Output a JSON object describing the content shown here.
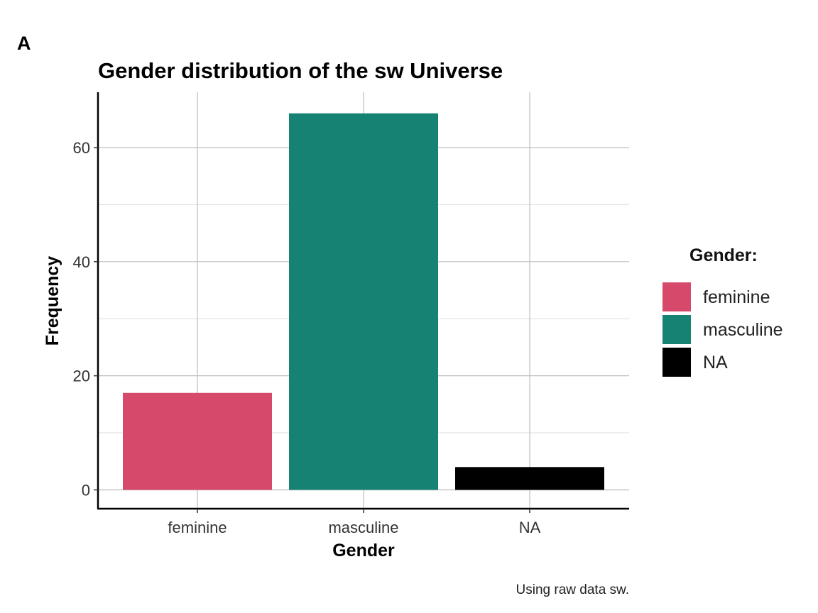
{
  "panel_tag": "A",
  "chart_data": {
    "type": "bar",
    "title": "Gender distribution of the sw Universe",
    "xlabel": "Gender",
    "ylabel": "Frequency",
    "caption": "Using raw data sw.",
    "categories": [
      "feminine",
      "masculine",
      "NA"
    ],
    "values": [
      17,
      66,
      4
    ],
    "colors": [
      "#D6496B",
      "#158274",
      "#000000"
    ],
    "yticks": [
      0,
      20,
      40,
      60
    ],
    "yminor": [
      10,
      30,
      50
    ],
    "ylim": [
      -3.3,
      69.7
    ],
    "grid": true,
    "legend": {
      "title": "Gender:",
      "placement": "right",
      "entries": [
        "feminine",
        "masculine",
        "NA"
      ]
    }
  }
}
